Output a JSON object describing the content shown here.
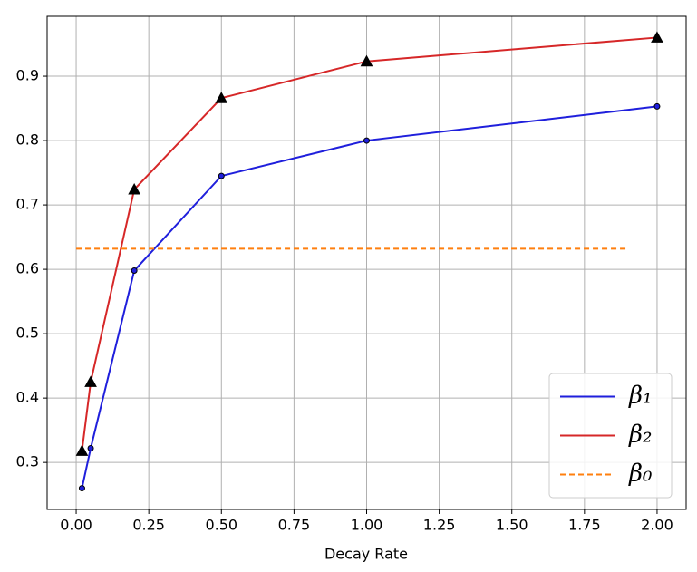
{
  "chart_data": {
    "type": "line",
    "xlabel": "Decay Rate",
    "x": [
      0.02,
      0.05,
      0.2,
      0.5,
      1.0,
      2.0
    ],
    "series": [
      {
        "name": "β₁",
        "color": "#1f1fdc",
        "marker": "circle",
        "values": [
          0.26,
          0.322,
          0.598,
          0.745,
          0.8,
          0.853
        ]
      },
      {
        "name": "β₂",
        "color": "#d62728",
        "marker": "triangle",
        "values": [
          0.318,
          0.425,
          0.724,
          0.866,
          0.923,
          0.96
        ]
      },
      {
        "name": "β₀",
        "color": "#ff7f0e",
        "dashed": true,
        "x": [
          0.0,
          1.9
        ],
        "values": [
          0.632,
          0.632
        ]
      }
    ],
    "xlim": [
      -0.1,
      2.1
    ],
    "ylim": [
      0.227,
      0.993
    ],
    "xticks": [
      {
        "value": 0,
        "label": "0.00"
      },
      {
        "value": 0.25,
        "label": "0.25"
      },
      {
        "value": 0.5,
        "label": "0.50"
      },
      {
        "value": 0.75,
        "label": "0.75"
      },
      {
        "value": 1.0,
        "label": "1.00"
      },
      {
        "value": 1.25,
        "label": "1.25"
      },
      {
        "value": 1.5,
        "label": "1.50"
      },
      {
        "value": 1.75,
        "label": "1.75"
      },
      {
        "value": 2.0,
        "label": "2.00"
      }
    ],
    "yticks": [
      0.3,
      0.4,
      0.5,
      0.6,
      0.7,
      0.8,
      0.9
    ],
    "grid": true,
    "legend": "lower right"
  }
}
